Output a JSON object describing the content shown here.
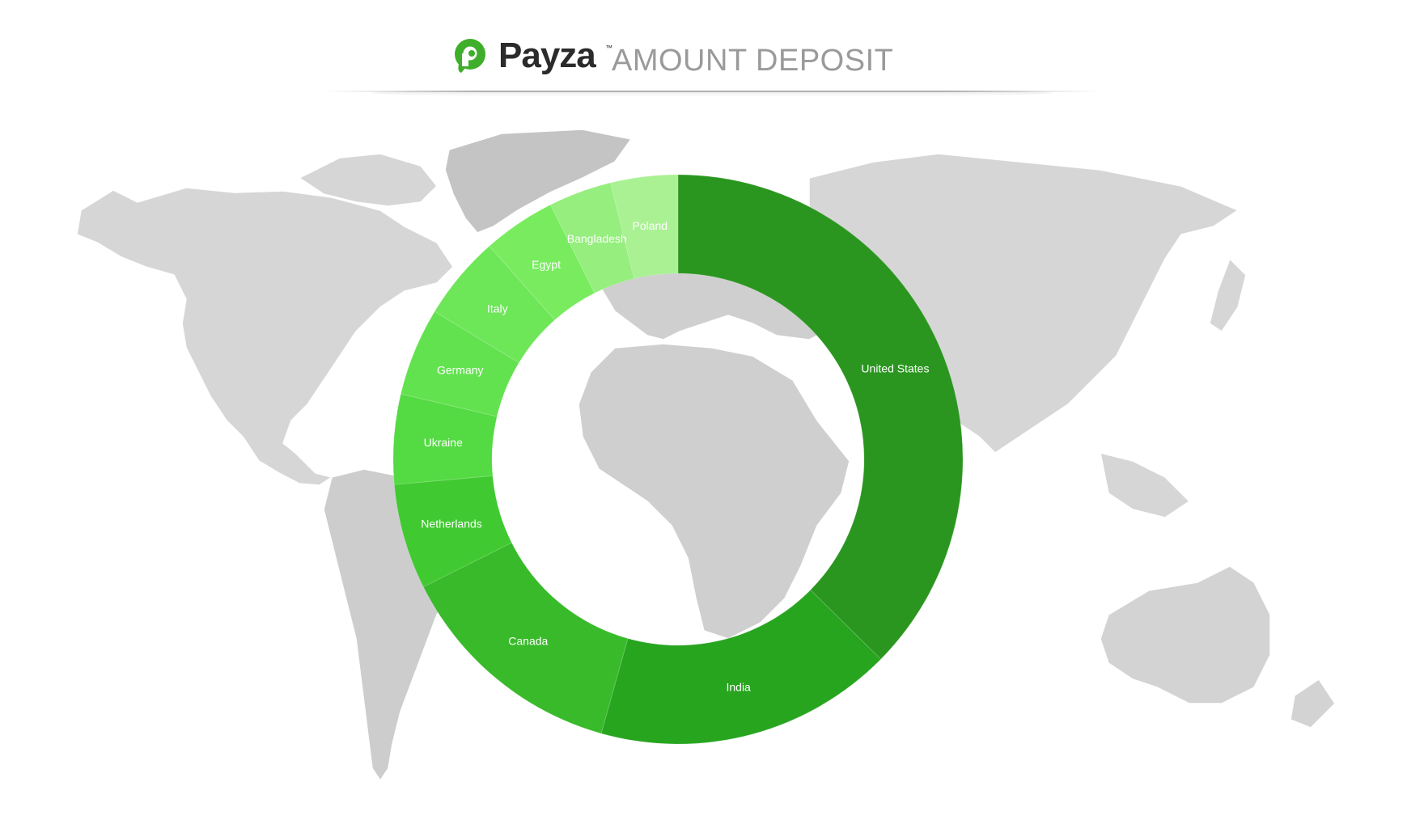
{
  "header": {
    "brand": "Payza",
    "trademark": "™",
    "subtitle": "AMOUNT DEPOSIT"
  },
  "colors": {
    "brand_green": "#3fae2a",
    "map_land": "#d6d6d6",
    "map_land_dark": "#c4c4c4",
    "header_text": "#2b2b2b",
    "subtitle_text": "#9a9a9a"
  },
  "chart_data": {
    "type": "pie",
    "variant": "donut",
    "title": "",
    "background": "world map",
    "slices": [
      {
        "label": "United States",
        "value": 34.4,
        "color": "#2a961f"
      },
      {
        "label": "India",
        "value": 15.6,
        "color": "#27a51f"
      },
      {
        "label": "Canada",
        "value": 12.2,
        "color": "#38ba2a"
      },
      {
        "label": "Netherlands",
        "value": 5.5,
        "color": "#40c930"
      },
      {
        "label": "Ukraine",
        "value": 4.7,
        "color": "#54da43"
      },
      {
        "label": "Germany",
        "value": 4.6,
        "color": "#63e24f"
      },
      {
        "label": "Italy",
        "value": 4.4,
        "color": "#6de658"
      },
      {
        "label": "Egypt",
        "value": 3.8,
        "color": "#78ec5e"
      },
      {
        "label": "Bangladesh",
        "value": 3.3,
        "color": "#95ee7d"
      },
      {
        "label": "Poland",
        "value": 3.5,
        "color": "#a9f193"
      }
    ]
  }
}
